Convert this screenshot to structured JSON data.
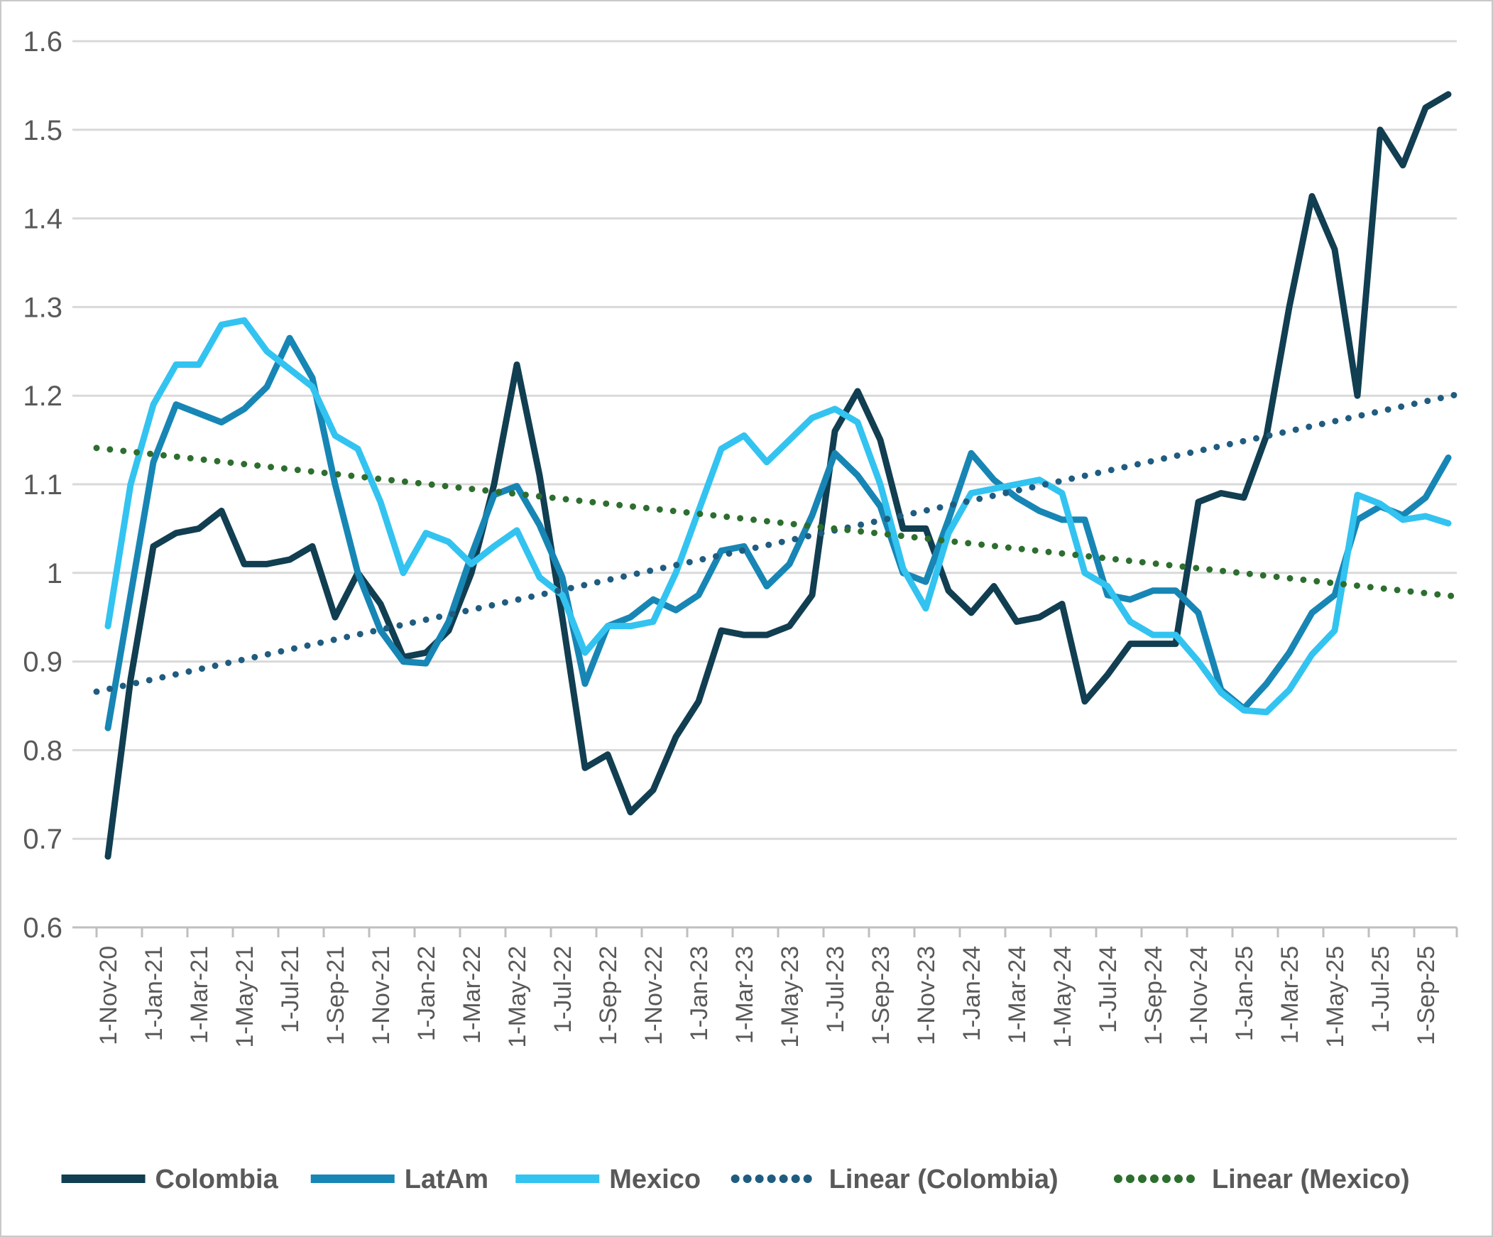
{
  "chart_data": {
    "type": "line",
    "title": "",
    "n_points": 60,
    "x_first_point": "1-Nov-20",
    "x_last_point": "1-Oct-25",
    "x_tick_labels": [
      "1-Nov-20",
      "1-Jan-21",
      "1-Mar-21",
      "1-May-21",
      "1-Jul-21",
      "1-Sep-21",
      "1-Nov-21",
      "1-Jan-22",
      "1-Mar-22",
      "1-May-22",
      "1-Jul-22",
      "1-Sep-22",
      "1-Nov-22",
      "1-Jan-23",
      "1-Mar-23",
      "1-May-23",
      "1-Jul-23",
      "1-Sep-23",
      "1-Nov-23",
      "1-Jan-24",
      "1-Mar-24",
      "1-May-24",
      "1-Jul-24",
      "1-Sep-24",
      "1-Nov-24",
      "1-Jan-25",
      "1-Mar-25",
      "1-May-25",
      "1-Jul-25",
      "1-Sep-25"
    ],
    "ylim": [
      0.6,
      1.6
    ],
    "ytick_step": 0.1,
    "ytick_labels": [
      "1.6",
      "1.5",
      "1.4",
      "1.3",
      "1.2",
      "1.1",
      "1",
      "0.9",
      "0.8",
      "0.7",
      "0.6"
    ],
    "grid": true,
    "legend_position": "bottom",
    "series": [
      {
        "name": "Colombia",
        "style": "solid",
        "color": "#113e51",
        "values": [
          0.68,
          0.88,
          1.03,
          1.045,
          1.05,
          1.07,
          1.01,
          1.01,
          1.015,
          1.03,
          0.95,
          1.0,
          0.965,
          0.905,
          0.91,
          0.935,
          1.0,
          1.1,
          1.235,
          1.11,
          0.95,
          0.78,
          0.795,
          0.73,
          0.755,
          0.815,
          0.855,
          0.935,
          0.93,
          0.93,
          0.94,
          0.975,
          1.16,
          1.205,
          1.15,
          1.05,
          1.05,
          0.98,
          0.955,
          0.985,
          0.945,
          0.95,
          0.965,
          0.855,
          0.885,
          0.92,
          0.92,
          0.92,
          1.08,
          1.09,
          1.085,
          1.155,
          1.3,
          1.425,
          1.365,
          1.2,
          1.5,
          1.46,
          1.525,
          1.54
        ]
      },
      {
        "name": "LatAm",
        "style": "solid",
        "color": "#1786b5",
        "values": [
          0.825,
          0.975,
          1.125,
          1.19,
          1.18,
          1.17,
          1.185,
          1.21,
          1.265,
          1.22,
          1.1,
          1.0,
          0.935,
          0.9,
          0.898,
          0.945,
          1.02,
          1.088,
          1.098,
          1.054,
          0.995,
          0.875,
          0.94,
          0.95,
          0.97,
          0.958,
          0.975,
          1.025,
          1.03,
          0.985,
          1.01,
          1.065,
          1.135,
          1.11,
          1.075,
          1.0,
          0.99,
          1.06,
          1.135,
          1.105,
          1.085,
          1.07,
          1.06,
          1.06,
          0.975,
          0.97,
          0.98,
          0.98,
          0.955,
          0.868,
          0.847,
          0.875,
          0.91,
          0.955,
          0.975,
          1.06,
          1.075,
          1.065,
          1.085,
          1.13
        ]
      },
      {
        "name": "Mexico",
        "style": "solid",
        "color": "#33c3f0",
        "values": [
          0.94,
          1.1,
          1.19,
          1.235,
          1.235,
          1.28,
          1.285,
          1.25,
          1.23,
          1.21,
          1.155,
          1.14,
          1.08,
          1.0,
          1.045,
          1.035,
          1.01,
          1.03,
          1.048,
          0.995,
          0.975,
          0.91,
          0.94,
          0.94,
          0.945,
          1.0,
          1.07,
          1.14,
          1.155,
          1.125,
          1.15,
          1.175,
          1.185,
          1.17,
          1.1,
          1.005,
          0.96,
          1.045,
          1.09,
          1.095,
          1.1,
          1.105,
          1.09,
          1.0,
          0.985,
          0.945,
          0.93,
          0.93,
          0.9,
          0.865,
          0.845,
          0.843,
          0.868,
          0.908,
          0.935,
          1.088,
          1.078,
          1.06,
          1.064,
          1.056
        ]
      },
      {
        "name": "Linear (Colombia)",
        "style": "dotted",
        "color": "#1f5c80",
        "trend": {
          "start_value": 0.866,
          "end_value": 1.202
        }
      },
      {
        "name": "Linear (Mexico)",
        "style": "dotted",
        "color": "#2d6e2f",
        "trend": {
          "start_value": 1.141,
          "end_value": 0.973
        }
      }
    ],
    "colors": {
      "gridline": "#d9d9d9",
      "axis_line": "#bfbfbf",
      "tick": "#bfbfbf",
      "axis_label": "#595959",
      "legend_text": "#595959",
      "background": "#ffffff",
      "border": "#c9c9c9"
    }
  }
}
